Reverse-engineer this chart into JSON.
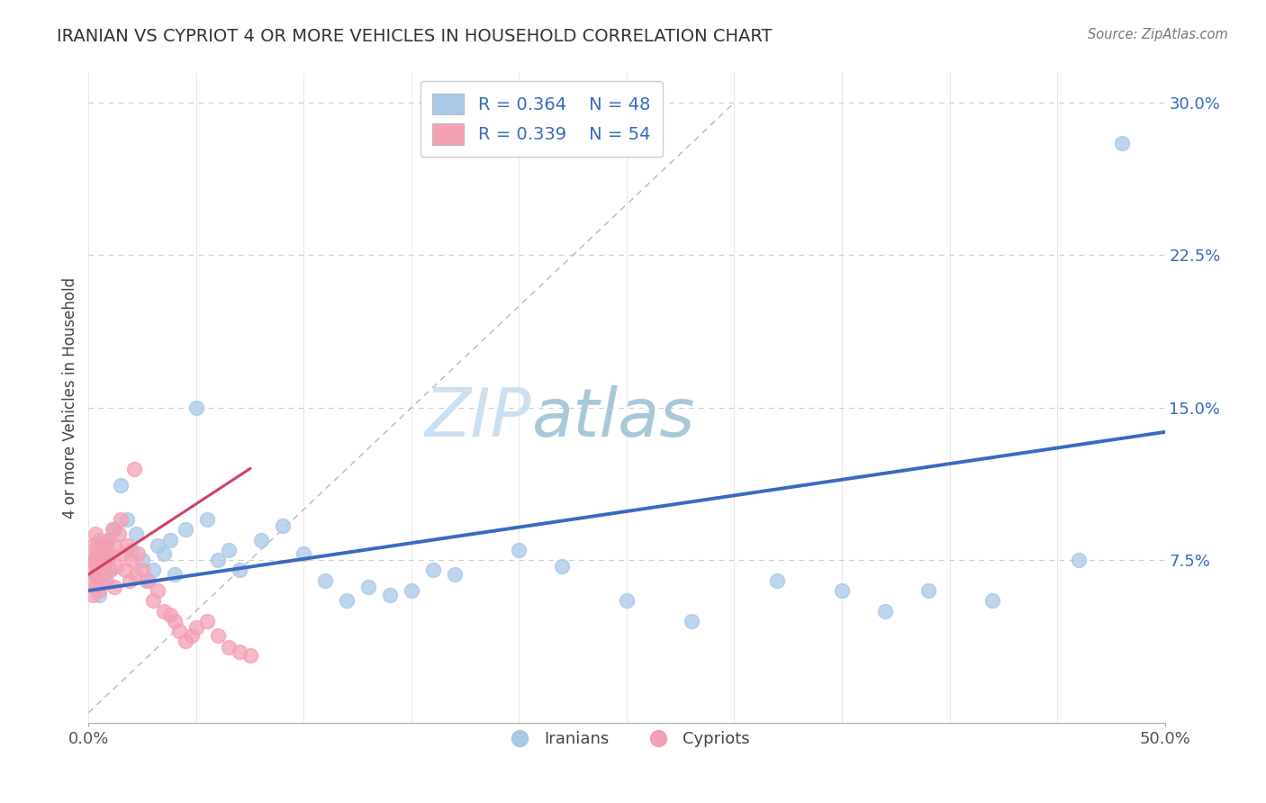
{
  "title": "IRANIAN VS CYPRIOT 4 OR MORE VEHICLES IN HOUSEHOLD CORRELATION CHART",
  "source_text": "Source: ZipAtlas.com",
  "ylabel": "4 or more Vehicles in Household",
  "xlim": [
    0.0,
    0.5
  ],
  "ylim": [
    -0.005,
    0.315
  ],
  "yticks": [
    0.075,
    0.15,
    0.225,
    0.3
  ],
  "ytick_labels": [
    "7.5%",
    "15.0%",
    "22.5%",
    "30.0%"
  ],
  "legend_r1": "R = 0.364",
  "legend_n1": "N = 48",
  "legend_r2": "R = 0.339",
  "legend_n2": "N = 54",
  "iranian_color": "#a8c8e8",
  "cypriot_color": "#f4a0b5",
  "iranian_line_color": "#3a6abf",
  "cypriot_line_color": "#d44060",
  "background_color": "#ffffff",
  "grid_color": "#cccccc",
  "watermark_zip": "ZIP",
  "watermark_atlas": "atlas",
  "watermark_color_zip": "#c8dff0",
  "watermark_color_atlas": "#a8c8d8",
  "iranians_x": [
    0.002,
    0.003,
    0.004,
    0.005,
    0.006,
    0.007,
    0.008,
    0.009,
    0.01,
    0.012,
    0.015,
    0.018,
    0.02,
    0.022,
    0.025,
    0.028,
    0.03,
    0.032,
    0.035,
    0.038,
    0.04,
    0.045,
    0.05,
    0.055,
    0.06,
    0.065,
    0.07,
    0.08,
    0.09,
    0.1,
    0.11,
    0.12,
    0.13,
    0.14,
    0.15,
    0.16,
    0.17,
    0.2,
    0.22,
    0.25,
    0.28,
    0.32,
    0.35,
    0.37,
    0.39,
    0.42,
    0.46,
    0.48
  ],
  "iranians_y": [
    0.075,
    0.068,
    0.082,
    0.058,
    0.072,
    0.065,
    0.078,
    0.085,
    0.07,
    0.09,
    0.112,
    0.095,
    0.08,
    0.088,
    0.075,
    0.065,
    0.07,
    0.082,
    0.078,
    0.085,
    0.068,
    0.09,
    0.15,
    0.095,
    0.075,
    0.08,
    0.07,
    0.085,
    0.092,
    0.078,
    0.065,
    0.055,
    0.062,
    0.058,
    0.06,
    0.07,
    0.068,
    0.08,
    0.072,
    0.055,
    0.045,
    0.065,
    0.06,
    0.05,
    0.06,
    0.055,
    0.075,
    0.28
  ],
  "cypriots_x": [
    0.001,
    0.001,
    0.002,
    0.002,
    0.002,
    0.003,
    0.003,
    0.003,
    0.004,
    0.004,
    0.004,
    0.005,
    0.005,
    0.005,
    0.006,
    0.006,
    0.007,
    0.007,
    0.008,
    0.008,
    0.009,
    0.009,
    0.01,
    0.01,
    0.011,
    0.012,
    0.012,
    0.013,
    0.014,
    0.015,
    0.016,
    0.017,
    0.018,
    0.019,
    0.02,
    0.021,
    0.022,
    0.023,
    0.025,
    0.027,
    0.03,
    0.032,
    0.035,
    0.038,
    0.04,
    0.042,
    0.045,
    0.048,
    0.05,
    0.055,
    0.06,
    0.065,
    0.07,
    0.075
  ],
  "cypriots_y": [
    0.075,
    0.065,
    0.082,
    0.07,
    0.058,
    0.075,
    0.088,
    0.062,
    0.07,
    0.08,
    0.065,
    0.075,
    0.085,
    0.06,
    0.078,
    0.068,
    0.08,
    0.072,
    0.082,
    0.065,
    0.075,
    0.085,
    0.07,
    0.078,
    0.09,
    0.062,
    0.082,
    0.072,
    0.088,
    0.095,
    0.078,
    0.07,
    0.082,
    0.065,
    0.075,
    0.12,
    0.068,
    0.078,
    0.07,
    0.065,
    0.055,
    0.06,
    0.05,
    0.048,
    0.045,
    0.04,
    0.035,
    0.038,
    0.042,
    0.045,
    0.038,
    0.032,
    0.03,
    0.028
  ],
  "iran_line_x0": 0.0,
  "iran_line_x1": 0.5,
  "iran_line_y0": 0.06,
  "iran_line_y1": 0.138,
  "cyp_line_x0": 0.0,
  "cyp_line_x1": 0.075,
  "cyp_line_y0": 0.068,
  "cyp_line_y1": 0.12
}
